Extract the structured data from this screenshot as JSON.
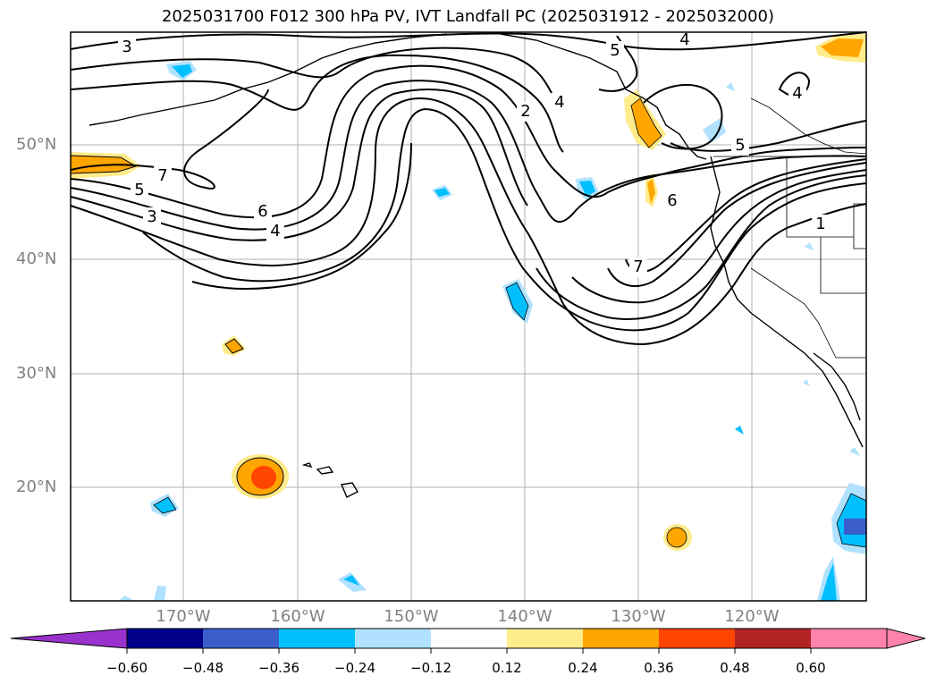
{
  "title": "2025031700 F012 300 hPa PV, IVT Landfall PC (2025031912 - 2025032000)",
  "lat_labels": [
    "50°N",
    "40°N",
    "30°N",
    "20°N"
  ],
  "lon_labels": [
    "170°W",
    "160°W",
    "150°W",
    "140°W",
    "130°W",
    "120°W"
  ],
  "contour_labels": [
    "3",
    "7",
    "5",
    "3",
    "6",
    "4",
    "2",
    "4",
    "5",
    "4",
    "4",
    "5",
    "6",
    "7",
    "1"
  ],
  "colorbar": {
    "ticks": [
      "−0.60",
      "−0.48",
      "−0.36",
      "−0.24",
      "−0.12",
      "0.12",
      "0.24",
      "0.36",
      "0.48",
      "0.60"
    ],
    "colors": [
      "#9932cc",
      "#00008b",
      "#3a5fcd",
      "#00bfff",
      "#b0e2ff",
      "#ffffff",
      "#ffec8b",
      "#ffa500",
      "#ff4500",
      "#b22222",
      "#ff82ab"
    ]
  }
}
